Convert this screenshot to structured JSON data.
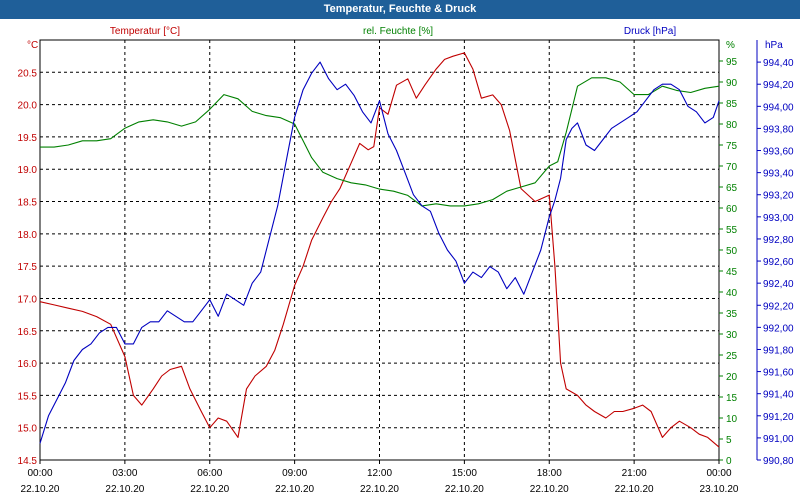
{
  "chart_data": {
    "type": "line",
    "title": "Temperatur, Feuchte & Druck",
    "x": {
      "tick_labels_time": [
        "00:00",
        "03:00",
        "06:00",
        "09:00",
        "12:00",
        "15:00",
        "18:00",
        "21:00",
        "00:00"
      ],
      "tick_labels_date": [
        "22.10.20",
        "22.10.20",
        "22.10.20",
        "22.10.20",
        "22.10.20",
        "22.10.20",
        "22.10.20",
        "22.10.20",
        "23.10.20"
      ],
      "range_hours": [
        0,
        24
      ]
    },
    "axes": {
      "temperature": {
        "label": "Temperatur [°C]",
        "unit": "°C",
        "range": [
          14.5,
          21.0
        ],
        "ticks": [
          "14.5",
          "15.0",
          "15.5",
          "16.0",
          "16.5",
          "17.0",
          "17.5",
          "18.0",
          "18.5",
          "19.0",
          "19.5",
          "20.0",
          "20.5"
        ],
        "color": "#c00000"
      },
      "humidity": {
        "label": "rel. Feuchte [%]",
        "unit": "%",
        "range": [
          0,
          100
        ],
        "ticks": [
          "0",
          "5",
          "10",
          "15",
          "20",
          "25",
          "30",
          "35",
          "40",
          "45",
          "50",
          "55",
          "60",
          "65",
          "70",
          "75",
          "80",
          "85",
          "90",
          "95"
        ],
        "color": "#008000"
      },
      "pressure": {
        "label": "Druck [hPa]",
        "unit": "hPa",
        "range": [
          990.8,
          994.6
        ],
        "ticks": [
          "990,80",
          "991,00",
          "991,20",
          "991,40",
          "991,60",
          "991,80",
          "992,00",
          "992,20",
          "992,40",
          "992,60",
          "992,80",
          "993,00",
          "993,20",
          "993,40",
          "993,60",
          "993,80",
          "994,00",
          "994,20",
          "994,40"
        ],
        "color": "#0000c0"
      }
    },
    "series": [
      {
        "name": "Temperatur [°C]",
        "axis": "temperature",
        "color": "#c00000",
        "x": [
          0,
          0.5,
          1,
          1.5,
          2,
          2.5,
          3,
          3.3,
          3.6,
          4,
          4.3,
          4.6,
          5,
          5.3,
          5.7,
          6,
          6.3,
          6.6,
          7,
          7.3,
          7.6,
          8,
          8.3,
          8.6,
          9,
          9.3,
          9.6,
          10,
          10.3,
          10.6,
          11,
          11.3,
          11.6,
          11.8,
          12,
          12.3,
          12.6,
          13,
          13.3,
          13.6,
          14,
          14.3,
          14.6,
          15,
          15.3,
          15.6,
          16,
          16.3,
          16.6,
          17,
          17.5,
          18,
          18.2,
          18.4,
          18.6,
          19,
          19.3,
          19.6,
          20,
          20.3,
          20.6,
          21,
          21.3,
          21.6,
          22,
          22.3,
          22.6,
          23,
          23.3,
          23.6,
          24
        ],
        "values": [
          16.95,
          16.9,
          16.85,
          16.8,
          16.72,
          16.6,
          16.1,
          15.5,
          15.35,
          15.6,
          15.8,
          15.9,
          15.95,
          15.6,
          15.25,
          15.0,
          15.15,
          15.1,
          14.85,
          15.6,
          15.8,
          15.95,
          16.2,
          16.6,
          17.2,
          17.5,
          17.9,
          18.25,
          18.5,
          18.7,
          19.1,
          19.4,
          19.3,
          19.35,
          19.95,
          19.85,
          20.3,
          20.4,
          20.1,
          20.3,
          20.55,
          20.7,
          20.75,
          20.8,
          20.55,
          20.1,
          20.15,
          20.0,
          19.6,
          18.7,
          18.5,
          18.6,
          17.5,
          16.0,
          15.6,
          15.5,
          15.35,
          15.25,
          15.15,
          15.25,
          15.25,
          15.3,
          15.35,
          15.25,
          14.85,
          15.0,
          15.1,
          15.0,
          14.9,
          14.85,
          14.7
        ]
      },
      {
        "name": "rel. Feuchte [%]",
        "axis": "humidity",
        "color": "#008000",
        "x": [
          0,
          0.5,
          1,
          1.5,
          2,
          2.5,
          3,
          3.5,
          4,
          4.5,
          5,
          5.5,
          6,
          6.5,
          7,
          7.5,
          8,
          8.5,
          9,
          9.3,
          9.6,
          10,
          10.5,
          11,
          11.5,
          12,
          12.5,
          13,
          13.5,
          14,
          14.5,
          15,
          15.5,
          16,
          16.5,
          17,
          17.5,
          18,
          18.3,
          18.6,
          19,
          19.5,
          20,
          20.5,
          21,
          21.5,
          22,
          22.5,
          23,
          23.5,
          24
        ],
        "values": [
          74.5,
          74.5,
          75,
          76,
          76,
          76.5,
          79,
          80.5,
          81,
          80.5,
          79.5,
          80.5,
          83.5,
          87,
          86,
          83,
          82,
          81.5,
          80,
          76,
          72,
          68.5,
          67,
          66,
          65.5,
          64.5,
          64,
          63,
          60.5,
          61,
          60.5,
          60.5,
          61,
          62,
          64,
          65,
          66,
          70,
          71,
          78,
          89,
          91,
          91,
          90,
          87,
          87,
          89,
          88,
          87.5,
          88.5,
          89
        ]
      },
      {
        "name": "Druck [hPa]",
        "axis": "pressure",
        "color": "#0000c0",
        "x": [
          0,
          0.3,
          0.6,
          0.9,
          1.2,
          1.5,
          1.8,
          2.1,
          2.4,
          2.7,
          3,
          3.3,
          3.6,
          3.9,
          4.2,
          4.5,
          4.8,
          5.1,
          5.4,
          5.7,
          6,
          6.3,
          6.6,
          6.9,
          7.2,
          7.5,
          7.8,
          8.1,
          8.4,
          8.7,
          9,
          9.3,
          9.6,
          9.9,
          10.2,
          10.5,
          10.8,
          11.1,
          11.4,
          11.7,
          12,
          12.3,
          12.6,
          12.9,
          13.2,
          13.5,
          13.8,
          14.1,
          14.4,
          14.7,
          15,
          15.3,
          15.6,
          15.9,
          16.2,
          16.5,
          16.8,
          17.1,
          17.4,
          17.7,
          18,
          18.2,
          18.4,
          18.6,
          18.8,
          19,
          19.3,
          19.6,
          19.9,
          20.2,
          20.5,
          20.8,
          21.1,
          21.4,
          21.7,
          22,
          22.3,
          22.6,
          22.9,
          23.2,
          23.5,
          23.8,
          24
        ],
        "values": [
          990.95,
          991.2,
          991.35,
          991.5,
          991.7,
          991.8,
          991.85,
          991.95,
          992.0,
          992.0,
          991.85,
          991.85,
          992.0,
          992.05,
          992.05,
          992.15,
          992.1,
          992.05,
          992.05,
          992.15,
          992.25,
          992.1,
          992.3,
          992.25,
          992.2,
          992.4,
          992.5,
          992.8,
          993.1,
          993.5,
          993.9,
          994.15,
          994.3,
          994.4,
          994.25,
          994.15,
          994.2,
          994.1,
          993.95,
          993.85,
          994.05,
          993.75,
          993.6,
          993.4,
          993.2,
          993.1,
          993.05,
          992.85,
          992.7,
          992.6,
          992.4,
          992.5,
          992.45,
          992.55,
          992.5,
          992.35,
          992.45,
          992.3,
          992.5,
          992.7,
          993.0,
          993.15,
          993.35,
          993.7,
          993.8,
          993.85,
          993.65,
          993.6,
          993.7,
          993.8,
          993.85,
          993.9,
          993.95,
          994.05,
          994.15,
          994.2,
          994.2,
          994.15,
          994.0,
          993.95,
          993.85,
          993.9,
          994.05
        ]
      }
    ],
    "grid": true
  }
}
